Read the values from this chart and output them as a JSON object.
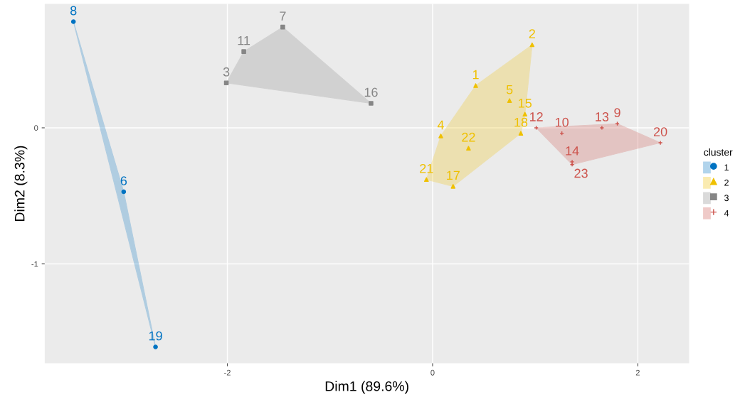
{
  "chart_data": {
    "type": "scatter",
    "xlabel": "Dim1 (89.6%)",
    "ylabel": "Dim2 (8.3%)",
    "legend_title": "cluster",
    "legend": "right",
    "grid": true,
    "xlim": [
      -3.78,
      2.5
    ],
    "ylim": [
      -1.73,
      0.91
    ],
    "xticks": [
      -2,
      0,
      2
    ],
    "yticks": [
      -1,
      0
    ],
    "series": [
      {
        "name": "1",
        "color": "#0073c2",
        "marker": "circle",
        "x": [
          -3.5,
          -3.01,
          -2.7
        ],
        "values": [
          0.78,
          -0.47,
          -1.61
        ]
      },
      {
        "name": "2",
        "color": "#efc000",
        "marker": "triangle",
        "x": [
          0.42,
          0.97,
          0.75,
          0.9,
          0.86,
          0.08,
          0.35,
          -0.06,
          0.2
        ],
        "values": [
          0.31,
          0.61,
          0.2,
          0.1,
          -0.04,
          -0.06,
          -0.15,
          -0.38,
          -0.43
        ]
      },
      {
        "name": "3",
        "color": "#868686",
        "marker": "square",
        "x": [
          -2.01,
          -1.46,
          -1.84,
          -0.6
        ],
        "values": [
          0.33,
          0.74,
          0.56,
          0.18
        ]
      },
      {
        "name": "4",
        "color": "#cd534c",
        "marker": "cross",
        "x": [
          1.8,
          1.26,
          1.01,
          1.65,
          1.36,
          2.22,
          1.36
        ],
        "values": [
          0.03,
          -0.04,
          0.0,
          0.0,
          -0.25,
          -0.11,
          -0.27
        ]
      }
    ],
    "annotations": [
      {
        "text": "8",
        "x": -3.5,
        "y": 0.78
      },
      {
        "text": "6",
        "x": -3.01,
        "y": -0.47
      },
      {
        "text": "19",
        "x": -2.7,
        "y": -1.61
      },
      {
        "text": "1",
        "x": 0.42,
        "y": 0.31
      },
      {
        "text": "2",
        "x": 0.97,
        "y": 0.61
      },
      {
        "text": "5",
        "x": 0.75,
        "y": 0.2
      },
      {
        "text": "15",
        "x": 0.9,
        "y": 0.1
      },
      {
        "text": "18",
        "x": 0.86,
        "y": -0.04
      },
      {
        "text": "4",
        "x": 0.08,
        "y": -0.06
      },
      {
        "text": "22",
        "x": 0.35,
        "y": -0.15
      },
      {
        "text": "21",
        "x": -0.06,
        "y": -0.38
      },
      {
        "text": "17",
        "x": 0.2,
        "y": -0.43
      },
      {
        "text": "3",
        "x": -2.01,
        "y": 0.33
      },
      {
        "text": "7",
        "x": -1.46,
        "y": 0.74
      },
      {
        "text": "11",
        "x": -1.84,
        "y": 0.56
      },
      {
        "text": "16",
        "x": -0.6,
        "y": 0.18
      },
      {
        "text": "9",
        "x": 1.8,
        "y": 0.03
      },
      {
        "text": "10",
        "x": 1.26,
        "y": -0.04
      },
      {
        "text": "12",
        "x": 1.01,
        "y": 0.0
      },
      {
        "text": "13",
        "x": 1.65,
        "y": 0.0
      },
      {
        "text": "14",
        "x": 1.36,
        "y": -0.25
      },
      {
        "text": "20",
        "x": 2.22,
        "y": -0.11
      },
      {
        "text": "23",
        "x": 1.36,
        "y": -0.27
      }
    ]
  }
}
